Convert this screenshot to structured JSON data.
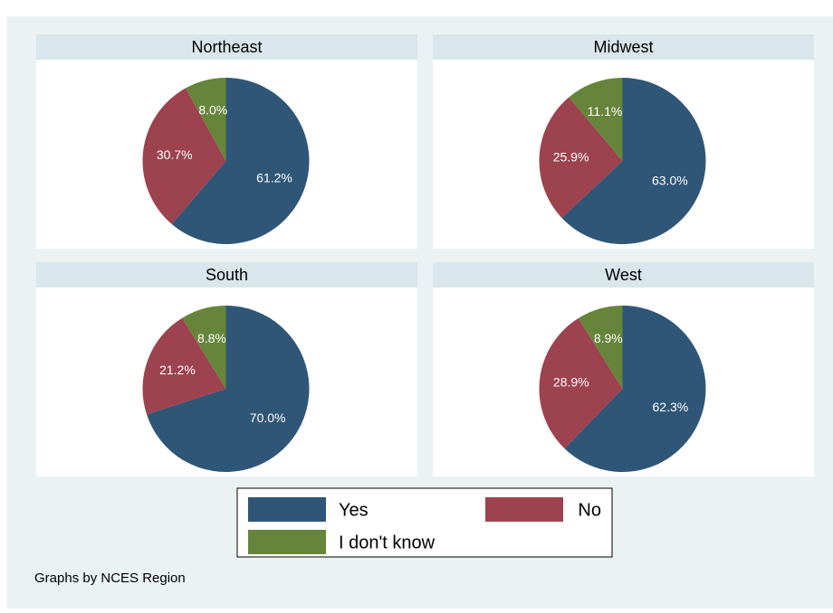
{
  "chart_data": [
    {
      "type": "pie",
      "title": "Northeast",
      "categories": [
        "Yes",
        "No",
        "I don't know"
      ],
      "values": [
        61.2,
        30.7,
        8.0
      ],
      "value_labels": [
        "61.2%",
        "30.7%",
        "8.0%"
      ],
      "colors": [
        "#2f5677",
        "#9c434f",
        "#66853b"
      ]
    },
    {
      "type": "pie",
      "title": "Midwest",
      "categories": [
        "Yes",
        "No",
        "I don't know"
      ],
      "values": [
        63.0,
        25.9,
        11.1
      ],
      "value_labels": [
        "63.0%",
        "25.9%",
        "11.1%"
      ],
      "colors": [
        "#2f5677",
        "#9c434f",
        "#66853b"
      ]
    },
    {
      "type": "pie",
      "title": "South",
      "categories": [
        "Yes",
        "No",
        "I don't know"
      ],
      "values": [
        70.0,
        21.2,
        8.8
      ],
      "value_labels": [
        "70.0%",
        "21.2%",
        "8.8%"
      ],
      "colors": [
        "#2f5677",
        "#9c434f",
        "#66853b"
      ]
    },
    {
      "type": "pie",
      "title": "West",
      "categories": [
        "Yes",
        "No",
        "I don't know"
      ],
      "values": [
        62.3,
        28.9,
        8.9
      ],
      "value_labels": [
        "62.3%",
        "28.9%",
        "8.9%"
      ],
      "colors": [
        "#2f5677",
        "#9c434f",
        "#66853b"
      ]
    }
  ],
  "note": "Graphs by NCES Region"
}
